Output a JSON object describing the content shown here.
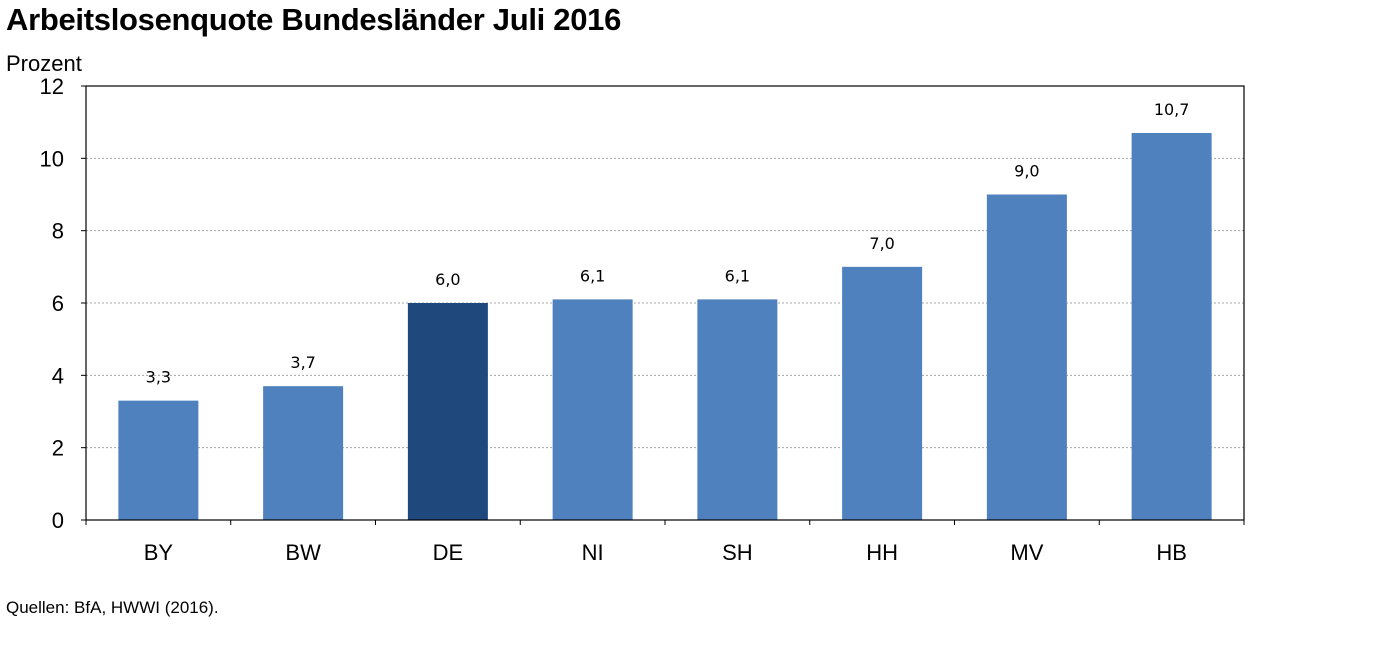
{
  "header": {
    "title": "Arbeitslosenquote Bundesländer Juli 2016",
    "unit_label": "Prozent"
  },
  "footer": {
    "source": "Quellen: BfA, HWWI (2016)."
  },
  "colors": {
    "bar": "#4e81bd",
    "highlight_bar": "#1f497d",
    "grid": "#a6a6a6",
    "axis": "#000000"
  },
  "chart_data": {
    "type": "bar",
    "title": "Arbeitslosenquote Bundesländer Juli 2016",
    "xlabel": "",
    "ylabel": "Prozent",
    "categories": [
      "BY",
      "BW",
      "DE",
      "NI",
      "SH",
      "HH",
      "MV",
      "HB"
    ],
    "values": [
      3.3,
      3.7,
      6.0,
      6.1,
      6.1,
      7.0,
      9.0,
      10.7
    ],
    "value_labels": [
      "3,3",
      "3,7",
      "6,0",
      "6,1",
      "6,1",
      "7,0",
      "9,0",
      "10,7"
    ],
    "highlight_category": "DE",
    "ylim": [
      0,
      12
    ],
    "yticks": [
      0,
      2,
      4,
      6,
      8,
      10,
      12
    ],
    "grid": true,
    "legend": "none"
  }
}
